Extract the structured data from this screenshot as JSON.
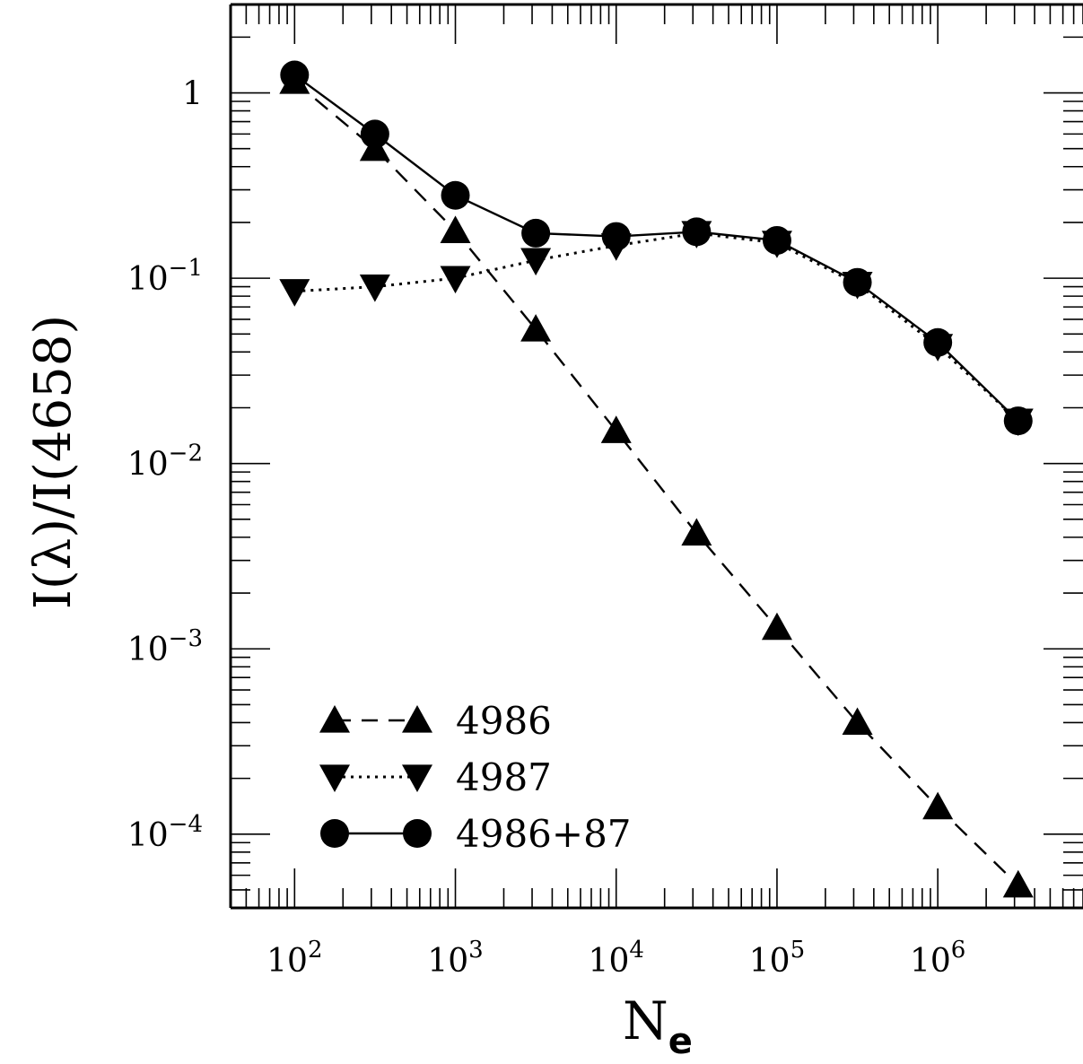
{
  "chart_data": {
    "type": "line",
    "xlabel": "N",
    "xlabel_sub": "e",
    "ylabel": "I(λ)/I(4658)",
    "x_scale": "log",
    "y_scale": "log",
    "xlim": [
      40,
      8000000
    ],
    "ylim": [
      4e-05,
      3.0
    ],
    "x_ticks": [
      {
        "value": 100,
        "base": "10",
        "exp": "2"
      },
      {
        "value": 1000,
        "base": "10",
        "exp": "3"
      },
      {
        "value": 10000,
        "base": "10",
        "exp": "4"
      },
      {
        "value": 100000,
        "base": "10",
        "exp": "5"
      },
      {
        "value": 1000000,
        "base": "10",
        "exp": "6"
      }
    ],
    "y_ticks": [
      {
        "value": 1,
        "base": "1",
        "exp": ""
      },
      {
        "value": 0.1,
        "base": "10",
        "exp": "−1"
      },
      {
        "value": 0.01,
        "base": "10",
        "exp": "−2"
      },
      {
        "value": 0.001,
        "base": "10",
        "exp": "−3"
      },
      {
        "value": 0.0001,
        "base": "10",
        "exp": "−4"
      }
    ],
    "grid": false,
    "legend_position": "bottom-left",
    "series": [
      {
        "name": "4986",
        "marker": "triangle-up",
        "line": "dashed",
        "x": [
          100,
          316,
          1000,
          3162,
          10000,
          31623,
          100000,
          316228,
          1000000,
          3162278
        ],
        "y": [
          1.15,
          0.5,
          0.18,
          0.053,
          0.015,
          0.0042,
          0.0013,
          0.0004,
          0.00014,
          5.3e-05
        ]
      },
      {
        "name": "4987",
        "marker": "triangle-down",
        "line": "dotted",
        "x": [
          100,
          316,
          1000,
          3162,
          10000,
          31623,
          100000,
          316228,
          1000000,
          3162278
        ],
        "y": [
          0.085,
          0.09,
          0.1,
          0.125,
          0.15,
          0.175,
          0.155,
          0.093,
          0.043,
          0.017
        ]
      },
      {
        "name": "4986+87",
        "marker": "circle",
        "line": "solid",
        "x": [
          100,
          316,
          1000,
          3162,
          10000,
          31623,
          100000,
          316228,
          1000000,
          3162278
        ],
        "y": [
          1.25,
          0.6,
          0.28,
          0.175,
          0.168,
          0.178,
          0.16,
          0.095,
          0.045,
          0.017
        ]
      }
    ]
  }
}
